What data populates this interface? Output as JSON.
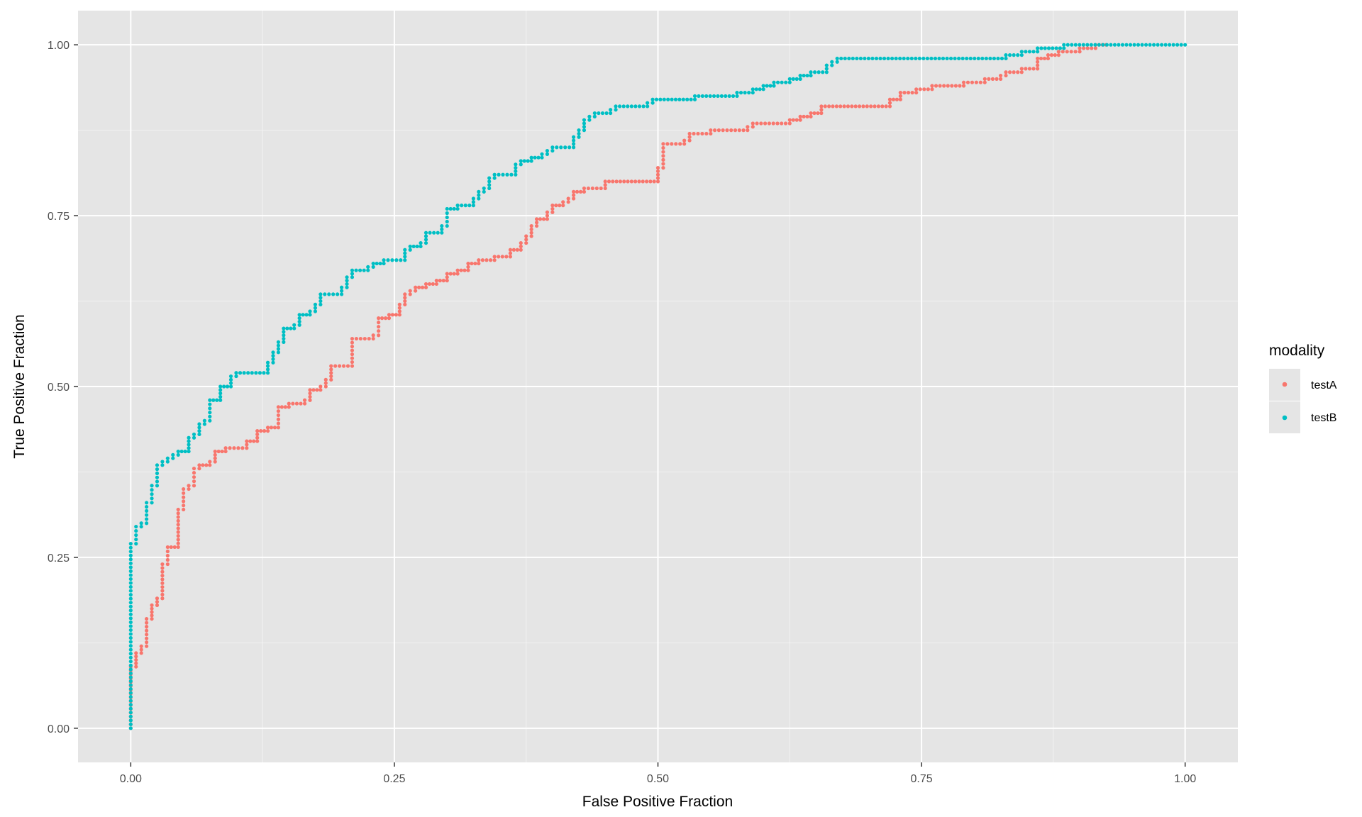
{
  "chart_data": {
    "type": "scatter",
    "title": "",
    "xlabel": "False Positive Fraction",
    "ylabel": "True Positive Fraction",
    "xlim": [
      -0.05,
      1.05
    ],
    "ylim": [
      -0.05,
      1.05
    ],
    "x_ticks": [
      0,
      0.25,
      0.5,
      0.75,
      1
    ],
    "x_tick_labels": [
      "0.00",
      "0.25",
      "0.50",
      "0.75",
      "1.00"
    ],
    "y_ticks": [
      0,
      0.25,
      0.5,
      0.75,
      1
    ],
    "y_tick_labels": [
      "0.00",
      "0.25",
      "0.50",
      "0.75",
      "1.00"
    ],
    "grid": true,
    "legend": {
      "title": "modality",
      "position": "right"
    },
    "series": [
      {
        "name": "testA",
        "color": "#F8766D",
        "points": [
          [
            0,
            0
          ],
          [
            0,
            0.09
          ],
          [
            0.005,
            0.09
          ],
          [
            0.005,
            0.11
          ],
          [
            0.01,
            0.11
          ],
          [
            0.01,
            0.12
          ],
          [
            0.015,
            0.12
          ],
          [
            0.015,
            0.16
          ],
          [
            0.02,
            0.16
          ],
          [
            0.02,
            0.18
          ],
          [
            0.025,
            0.18
          ],
          [
            0.025,
            0.19
          ],
          [
            0.03,
            0.19
          ],
          [
            0.03,
            0.24
          ],
          [
            0.035,
            0.24
          ],
          [
            0.035,
            0.265
          ],
          [
            0.045,
            0.265
          ],
          [
            0.045,
            0.32
          ],
          [
            0.05,
            0.32
          ],
          [
            0.05,
            0.35
          ],
          [
            0.055,
            0.35
          ],
          [
            0.055,
            0.355
          ],
          [
            0.06,
            0.355
          ],
          [
            0.06,
            0.38
          ],
          [
            0.065,
            0.38
          ],
          [
            0.065,
            0.385
          ],
          [
            0.075,
            0.385
          ],
          [
            0.075,
            0.39
          ],
          [
            0.08,
            0.39
          ],
          [
            0.08,
            0.405
          ],
          [
            0.09,
            0.405
          ],
          [
            0.09,
            0.41
          ],
          [
            0.11,
            0.41
          ],
          [
            0.11,
            0.42
          ],
          [
            0.12,
            0.42
          ],
          [
            0.12,
            0.435
          ],
          [
            0.13,
            0.435
          ],
          [
            0.13,
            0.44
          ],
          [
            0.14,
            0.44
          ],
          [
            0.14,
            0.47
          ],
          [
            0.15,
            0.47
          ],
          [
            0.15,
            0.475
          ],
          [
            0.165,
            0.475
          ],
          [
            0.165,
            0.48
          ],
          [
            0.17,
            0.48
          ],
          [
            0.17,
            0.495
          ],
          [
            0.18,
            0.495
          ],
          [
            0.18,
            0.5
          ],
          [
            0.185,
            0.5
          ],
          [
            0.185,
            0.51
          ],
          [
            0.19,
            0.51
          ],
          [
            0.19,
            0.53
          ],
          [
            0.21,
            0.53
          ],
          [
            0.21,
            0.57
          ],
          [
            0.23,
            0.57
          ],
          [
            0.23,
            0.575
          ],
          [
            0.235,
            0.575
          ],
          [
            0.235,
            0.6
          ],
          [
            0.245,
            0.6
          ],
          [
            0.245,
            0.605
          ],
          [
            0.255,
            0.605
          ],
          [
            0.255,
            0.62
          ],
          [
            0.26,
            0.62
          ],
          [
            0.26,
            0.635
          ],
          [
            0.265,
            0.635
          ],
          [
            0.265,
            0.64
          ],
          [
            0.27,
            0.64
          ],
          [
            0.27,
            0.645
          ],
          [
            0.28,
            0.645
          ],
          [
            0.28,
            0.65
          ],
          [
            0.29,
            0.65
          ],
          [
            0.29,
            0.655
          ],
          [
            0.3,
            0.655
          ],
          [
            0.3,
            0.665
          ],
          [
            0.31,
            0.665
          ],
          [
            0.31,
            0.67
          ],
          [
            0.32,
            0.67
          ],
          [
            0.32,
            0.68
          ],
          [
            0.33,
            0.68
          ],
          [
            0.33,
            0.685
          ],
          [
            0.345,
            0.685
          ],
          [
            0.345,
            0.69
          ],
          [
            0.36,
            0.69
          ],
          [
            0.36,
            0.7
          ],
          [
            0.37,
            0.7
          ],
          [
            0.37,
            0.71
          ],
          [
            0.375,
            0.71
          ],
          [
            0.375,
            0.72
          ],
          [
            0.38,
            0.72
          ],
          [
            0.38,
            0.735
          ],
          [
            0.385,
            0.735
          ],
          [
            0.385,
            0.745
          ],
          [
            0.395,
            0.745
          ],
          [
            0.395,
            0.755
          ],
          [
            0.4,
            0.755
          ],
          [
            0.4,
            0.765
          ],
          [
            0.41,
            0.765
          ],
          [
            0.41,
            0.77
          ],
          [
            0.415,
            0.77
          ],
          [
            0.415,
            0.775
          ],
          [
            0.42,
            0.775
          ],
          [
            0.42,
            0.785
          ],
          [
            0.43,
            0.785
          ],
          [
            0.43,
            0.79
          ],
          [
            0.45,
            0.79
          ],
          [
            0.45,
            0.8
          ],
          [
            0.5,
            0.8
          ],
          [
            0.5,
            0.82
          ],
          [
            0.505,
            0.82
          ],
          [
            0.505,
            0.855
          ],
          [
            0.525,
            0.855
          ],
          [
            0.525,
            0.86
          ],
          [
            0.53,
            0.86
          ],
          [
            0.53,
            0.87
          ],
          [
            0.55,
            0.87
          ],
          [
            0.55,
            0.875
          ],
          [
            0.585,
            0.875
          ],
          [
            0.585,
            0.88
          ],
          [
            0.59,
            0.88
          ],
          [
            0.59,
            0.885
          ],
          [
            0.625,
            0.885
          ],
          [
            0.625,
            0.89
          ],
          [
            0.635,
            0.89
          ],
          [
            0.635,
            0.895
          ],
          [
            0.645,
            0.895
          ],
          [
            0.645,
            0.9
          ],
          [
            0.655,
            0.9
          ],
          [
            0.655,
            0.91
          ],
          [
            0.72,
            0.91
          ],
          [
            0.72,
            0.92
          ],
          [
            0.73,
            0.92
          ],
          [
            0.73,
            0.93
          ],
          [
            0.745,
            0.93
          ],
          [
            0.745,
            0.935
          ],
          [
            0.76,
            0.935
          ],
          [
            0.76,
            0.94
          ],
          [
            0.79,
            0.94
          ],
          [
            0.79,
            0.945
          ],
          [
            0.81,
            0.945
          ],
          [
            0.81,
            0.95
          ],
          [
            0.825,
            0.95
          ],
          [
            0.825,
            0.955
          ],
          [
            0.83,
            0.955
          ],
          [
            0.83,
            0.96
          ],
          [
            0.845,
            0.96
          ],
          [
            0.845,
            0.965
          ],
          [
            0.86,
            0.965
          ],
          [
            0.86,
            0.98
          ],
          [
            0.87,
            0.98
          ],
          [
            0.87,
            0.985
          ],
          [
            0.88,
            0.985
          ],
          [
            0.88,
            0.99
          ],
          [
            0.9,
            0.99
          ],
          [
            0.9,
            0.995
          ],
          [
            0.915,
            0.995
          ],
          [
            0.915,
            1
          ],
          [
            0.925,
            1
          ]
        ]
      },
      {
        "name": "testB",
        "color": "#00BFC4",
        "points": [
          [
            0,
            0
          ],
          [
            0,
            0.27
          ],
          [
            0.005,
            0.27
          ],
          [
            0.005,
            0.295
          ],
          [
            0.01,
            0.295
          ],
          [
            0.01,
            0.3
          ],
          [
            0.015,
            0.3
          ],
          [
            0.015,
            0.33
          ],
          [
            0.02,
            0.33
          ],
          [
            0.02,
            0.355
          ],
          [
            0.025,
            0.355
          ],
          [
            0.025,
            0.385
          ],
          [
            0.03,
            0.385
          ],
          [
            0.03,
            0.39
          ],
          [
            0.035,
            0.39
          ],
          [
            0.035,
            0.395
          ],
          [
            0.04,
            0.395
          ],
          [
            0.04,
            0.4
          ],
          [
            0.045,
            0.4
          ],
          [
            0.045,
            0.405
          ],
          [
            0.055,
            0.405
          ],
          [
            0.055,
            0.425
          ],
          [
            0.06,
            0.425
          ],
          [
            0.06,
            0.43
          ],
          [
            0.065,
            0.43
          ],
          [
            0.065,
            0.445
          ],
          [
            0.07,
            0.445
          ],
          [
            0.07,
            0.45
          ],
          [
            0.075,
            0.45
          ],
          [
            0.075,
            0.48
          ],
          [
            0.085,
            0.48
          ],
          [
            0.085,
            0.5
          ],
          [
            0.095,
            0.5
          ],
          [
            0.095,
            0.515
          ],
          [
            0.1,
            0.515
          ],
          [
            0.1,
            0.52
          ],
          [
            0.13,
            0.52
          ],
          [
            0.13,
            0.535
          ],
          [
            0.135,
            0.535
          ],
          [
            0.135,
            0.55
          ],
          [
            0.14,
            0.55
          ],
          [
            0.14,
            0.565
          ],
          [
            0.145,
            0.565
          ],
          [
            0.145,
            0.585
          ],
          [
            0.155,
            0.585
          ],
          [
            0.155,
            0.59
          ],
          [
            0.16,
            0.59
          ],
          [
            0.16,
            0.605
          ],
          [
            0.17,
            0.605
          ],
          [
            0.17,
            0.61
          ],
          [
            0.175,
            0.61
          ],
          [
            0.175,
            0.62
          ],
          [
            0.18,
            0.62
          ],
          [
            0.18,
            0.635
          ],
          [
            0.2,
            0.635
          ],
          [
            0.2,
            0.645
          ],
          [
            0.205,
            0.645
          ],
          [
            0.205,
            0.66
          ],
          [
            0.21,
            0.66
          ],
          [
            0.21,
            0.67
          ],
          [
            0.225,
            0.67
          ],
          [
            0.225,
            0.675
          ],
          [
            0.23,
            0.675
          ],
          [
            0.23,
            0.68
          ],
          [
            0.24,
            0.68
          ],
          [
            0.24,
            0.685
          ],
          [
            0.26,
            0.685
          ],
          [
            0.26,
            0.7
          ],
          [
            0.265,
            0.7
          ],
          [
            0.265,
            0.705
          ],
          [
            0.275,
            0.705
          ],
          [
            0.275,
            0.71
          ],
          [
            0.28,
            0.71
          ],
          [
            0.28,
            0.725
          ],
          [
            0.295,
            0.725
          ],
          [
            0.295,
            0.735
          ],
          [
            0.3,
            0.735
          ],
          [
            0.3,
            0.76
          ],
          [
            0.31,
            0.76
          ],
          [
            0.31,
            0.765
          ],
          [
            0.325,
            0.765
          ],
          [
            0.325,
            0.775
          ],
          [
            0.33,
            0.775
          ],
          [
            0.33,
            0.785
          ],
          [
            0.335,
            0.785
          ],
          [
            0.335,
            0.79
          ],
          [
            0.34,
            0.79
          ],
          [
            0.34,
            0.805
          ],
          [
            0.345,
            0.805
          ],
          [
            0.345,
            0.81
          ],
          [
            0.365,
            0.81
          ],
          [
            0.365,
            0.825
          ],
          [
            0.37,
            0.825
          ],
          [
            0.37,
            0.83
          ],
          [
            0.38,
            0.83
          ],
          [
            0.38,
            0.835
          ],
          [
            0.39,
            0.835
          ],
          [
            0.39,
            0.84
          ],
          [
            0.395,
            0.84
          ],
          [
            0.395,
            0.845
          ],
          [
            0.4,
            0.845
          ],
          [
            0.4,
            0.85
          ],
          [
            0.42,
            0.85
          ],
          [
            0.42,
            0.865
          ],
          [
            0.425,
            0.865
          ],
          [
            0.425,
            0.875
          ],
          [
            0.43,
            0.875
          ],
          [
            0.43,
            0.89
          ],
          [
            0.435,
            0.89
          ],
          [
            0.435,
            0.895
          ],
          [
            0.44,
            0.895
          ],
          [
            0.44,
            0.9
          ],
          [
            0.455,
            0.9
          ],
          [
            0.455,
            0.905
          ],
          [
            0.46,
            0.905
          ],
          [
            0.46,
            0.91
          ],
          [
            0.49,
            0.91
          ],
          [
            0.49,
            0.915
          ],
          [
            0.495,
            0.915
          ],
          [
            0.495,
            0.92
          ],
          [
            0.535,
            0.92
          ],
          [
            0.535,
            0.925
          ],
          [
            0.575,
            0.925
          ],
          [
            0.575,
            0.93
          ],
          [
            0.59,
            0.93
          ],
          [
            0.59,
            0.935
          ],
          [
            0.6,
            0.935
          ],
          [
            0.6,
            0.94
          ],
          [
            0.61,
            0.94
          ],
          [
            0.61,
            0.945
          ],
          [
            0.625,
            0.945
          ],
          [
            0.625,
            0.95
          ],
          [
            0.635,
            0.95
          ],
          [
            0.635,
            0.955
          ],
          [
            0.645,
            0.955
          ],
          [
            0.645,
            0.96
          ],
          [
            0.66,
            0.96
          ],
          [
            0.66,
            0.97
          ],
          [
            0.665,
            0.97
          ],
          [
            0.665,
            0.975
          ],
          [
            0.67,
            0.975
          ],
          [
            0.67,
            0.98
          ],
          [
            0.83,
            0.98
          ],
          [
            0.83,
            0.985
          ],
          [
            0.845,
            0.985
          ],
          [
            0.845,
            0.99
          ],
          [
            0.86,
            0.99
          ],
          [
            0.86,
            0.995
          ],
          [
            0.885,
            0.995
          ],
          [
            0.885,
            1
          ],
          [
            1,
            1
          ]
        ]
      }
    ]
  }
}
